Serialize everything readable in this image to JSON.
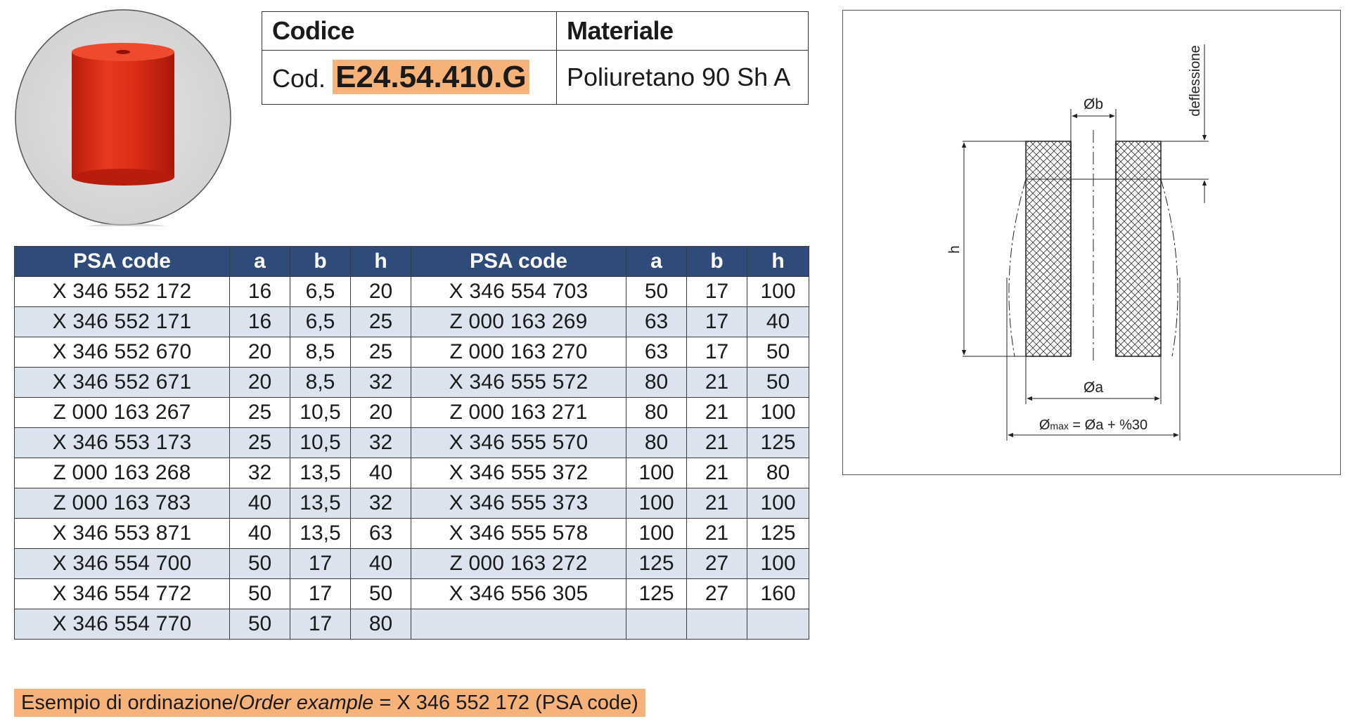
{
  "header": {
    "codice_label": "Codice",
    "materiale_label": "Materiale",
    "cod_prefix": "Cod.",
    "code": "E24.54.410.G",
    "material": "Poliuretano 90 Sh A"
  },
  "table": {
    "headers": [
      "PSA code",
      "a",
      "b",
      "h",
      "PSA code",
      "a",
      "b",
      "h"
    ],
    "left": [
      [
        "X 346 552 172",
        "16",
        "6,5",
        "20"
      ],
      [
        "X 346 552 171",
        "16",
        "6,5",
        "25"
      ],
      [
        "X 346 552 670",
        "20",
        "8,5",
        "25"
      ],
      [
        "X 346 552 671",
        "20",
        "8,5",
        "32"
      ],
      [
        "Z 000 163 267",
        "25",
        "10,5",
        "20"
      ],
      [
        "X 346 553 173",
        "25",
        "10,5",
        "32"
      ],
      [
        "Z 000 163 268",
        "32",
        "13,5",
        "40"
      ],
      [
        "Z 000 163 783",
        "40",
        "13,5",
        "32"
      ],
      [
        "X 346 553 871",
        "40",
        "13,5",
        "63"
      ],
      [
        "X 346 554 700",
        "50",
        "17",
        "40"
      ],
      [
        "X 346 554 772",
        "50",
        "17",
        "50"
      ],
      [
        "X 346 554 770",
        "50",
        "17",
        "80"
      ]
    ],
    "right": [
      [
        "X 346 554 703",
        "50",
        "17",
        "100"
      ],
      [
        "Z 000 163 269",
        "63",
        "17",
        "40"
      ],
      [
        "Z 000 163 270",
        "63",
        "17",
        "50"
      ],
      [
        "X 346 555 572",
        "80",
        "21",
        "50"
      ],
      [
        "Z 000 163 271",
        "80",
        "21",
        "100"
      ],
      [
        "X 346 555 570",
        "80",
        "21",
        "125"
      ],
      [
        "X 346 555 372",
        "100",
        "21",
        "80"
      ],
      [
        "X 346 555 373",
        "100",
        "21",
        "100"
      ],
      [
        "X 346 555 578",
        "100",
        "21",
        "125"
      ],
      [
        "Z 000 163 272",
        "125",
        "27",
        "100"
      ],
      [
        "X 346 556 305",
        "125",
        "27",
        "160"
      ],
      [
        "",
        "",
        "",
        ""
      ]
    ]
  },
  "drawing": {
    "label_b": "Øb",
    "label_a": "Øa",
    "label_h": "h",
    "label_deflection": "deflessione",
    "label_max_prefix": "Ø",
    "label_max_sub": "max",
    "label_max_suffix": " = Øa + %30"
  },
  "order": {
    "prefix": "Esempio di ordinazione/",
    "italic": "Order example",
    "suffix": " = X 346 552 172 (PSA code)"
  },
  "colors": {
    "header_bg": "#2f4b7a",
    "row_alt_bg": "#dbe3ef",
    "highlight": "#f7b27a",
    "product_red": "#d62a16"
  }
}
